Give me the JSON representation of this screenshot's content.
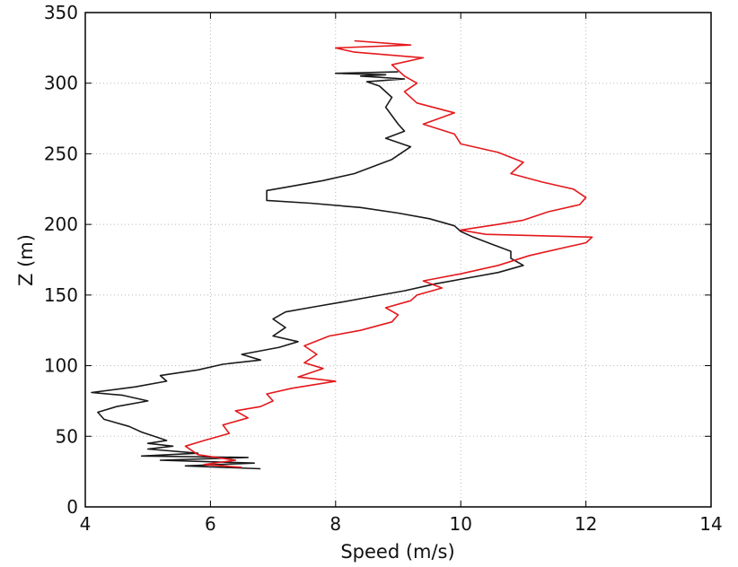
{
  "chart_data": {
    "type": "line",
    "title": "",
    "xlabel": "Speed (m/s)",
    "ylabel": "Z (m)",
    "xlim": [
      4,
      14
    ],
    "ylim": [
      0,
      350
    ],
    "xticks": [
      4,
      6,
      8,
      10,
      12,
      14
    ],
    "yticks": [
      0,
      50,
      100,
      150,
      200,
      250,
      300,
      350
    ],
    "xtick_labels": [
      "4",
      "6",
      "8",
      "10",
      "12",
      "14"
    ],
    "ytick_labels": [
      "0",
      "50",
      "100",
      "150",
      "200",
      "250",
      "300",
      "350"
    ],
    "grid": true,
    "legend": "none",
    "series": [
      {
        "color": "#1a1a1a",
        "points": [
          [
            6.8,
            27
          ],
          [
            5.6,
            29
          ],
          [
            6.7,
            31
          ],
          [
            5.2,
            33
          ],
          [
            6.6,
            35
          ],
          [
            4.9,
            36
          ],
          [
            5.8,
            38
          ],
          [
            5.0,
            41
          ],
          [
            5.4,
            43
          ],
          [
            5.0,
            45
          ],
          [
            5.3,
            47
          ],
          [
            5.1,
            50
          ],
          [
            4.9,
            53
          ],
          [
            4.7,
            57
          ],
          [
            4.3,
            62
          ],
          [
            4.2,
            67
          ],
          [
            4.5,
            71
          ],
          [
            5.0,
            75
          ],
          [
            4.6,
            79
          ],
          [
            4.1,
            81
          ],
          [
            4.8,
            85
          ],
          [
            5.3,
            89
          ],
          [
            5.2,
            93
          ],
          [
            5.8,
            97
          ],
          [
            6.2,
            101
          ],
          [
            6.8,
            104
          ],
          [
            6.5,
            108
          ],
          [
            7.1,
            113
          ],
          [
            7.4,
            117
          ],
          [
            7.0,
            121
          ],
          [
            7.2,
            127
          ],
          [
            7.0,
            133
          ],
          [
            7.2,
            138
          ],
          [
            7.7,
            142
          ],
          [
            8.1,
            145
          ],
          [
            8.6,
            149
          ],
          [
            9.1,
            153
          ],
          [
            9.6,
            158
          ],
          [
            10.1,
            162
          ],
          [
            10.6,
            166
          ],
          [
            11.0,
            171
          ],
          [
            10.8,
            176
          ],
          [
            10.8,
            181
          ],
          [
            10.5,
            186
          ],
          [
            10.2,
            191
          ],
          [
            10.0,
            195
          ],
          [
            9.9,
            199
          ],
          [
            9.5,
            204
          ],
          [
            9.0,
            208
          ],
          [
            8.4,
            212
          ],
          [
            7.6,
            215
          ],
          [
            6.9,
            217
          ],
          [
            6.9,
            221
          ],
          [
            6.9,
            224
          ],
          [
            7.3,
            227
          ],
          [
            7.8,
            231
          ],
          [
            8.3,
            236
          ],
          [
            8.9,
            246
          ],
          [
            9.2,
            255
          ],
          [
            8.8,
            261
          ],
          [
            9.1,
            266
          ],
          [
            9.0,
            271
          ],
          [
            8.9,
            277
          ],
          [
            8.8,
            283
          ],
          [
            8.9,
            290
          ],
          [
            8.7,
            298
          ],
          [
            8.5,
            301
          ],
          [
            9.1,
            303
          ],
          [
            8.4,
            305
          ],
          [
            8.8,
            306
          ],
          [
            8.0,
            307
          ],
          [
            9.0,
            308
          ]
        ]
      },
      {
        "color": "#e4181c",
        "points": [
          [
            6.5,
            28
          ],
          [
            5.9,
            30
          ],
          [
            6.4,
            33
          ],
          [
            5.8,
            37
          ],
          [
            5.6,
            43
          ],
          [
            5.9,
            47
          ],
          [
            6.3,
            52
          ],
          [
            6.2,
            58
          ],
          [
            6.6,
            63
          ],
          [
            6.4,
            68
          ],
          [
            6.8,
            71
          ],
          [
            7.0,
            75
          ],
          [
            6.9,
            80
          ],
          [
            7.3,
            84
          ],
          [
            8.0,
            89
          ],
          [
            7.4,
            92
          ],
          [
            7.8,
            98
          ],
          [
            7.5,
            102
          ],
          [
            7.7,
            108
          ],
          [
            7.5,
            114
          ],
          [
            7.9,
            121
          ],
          [
            8.4,
            125
          ],
          [
            8.9,
            131
          ],
          [
            9.0,
            136
          ],
          [
            8.8,
            141
          ],
          [
            9.2,
            146
          ],
          [
            9.3,
            150
          ],
          [
            9.7,
            155
          ],
          [
            9.4,
            160
          ],
          [
            10.0,
            165
          ],
          [
            10.6,
            171
          ],
          [
            11.1,
            178
          ],
          [
            12.0,
            187
          ],
          [
            12.1,
            191
          ],
          [
            10.4,
            193
          ],
          [
            10.0,
            196
          ],
          [
            10.6,
            200
          ],
          [
            11.0,
            203
          ],
          [
            11.4,
            209
          ],
          [
            11.9,
            214
          ],
          [
            12.0,
            219
          ],
          [
            11.8,
            225
          ],
          [
            11.3,
            230
          ],
          [
            10.8,
            236
          ],
          [
            11.0,
            244
          ],
          [
            10.6,
            251
          ],
          [
            10.0,
            257
          ],
          [
            9.9,
            264
          ],
          [
            9.4,
            271
          ],
          [
            9.9,
            279
          ],
          [
            9.3,
            286
          ],
          [
            9.1,
            294
          ],
          [
            9.3,
            300
          ],
          [
            9.1,
            305
          ],
          [
            9.0,
            309
          ],
          [
            8.9,
            313
          ],
          [
            9.4,
            318
          ],
          [
            8.3,
            322
          ],
          [
            8.0,
            325
          ],
          [
            9.2,
            327
          ],
          [
            8.3,
            330
          ]
        ]
      }
    ]
  }
}
